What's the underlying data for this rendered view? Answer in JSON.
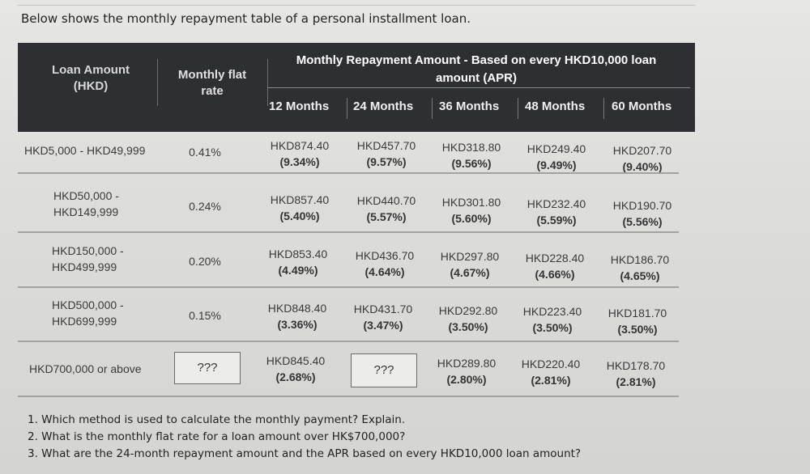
{
  "intro": "Below shows the monthly repayment table of a personal installment loan.",
  "header": {
    "loan_amount": "Loan Amount",
    "loan_amount_unit": "(HKD)",
    "rate_line1": "Monthly flat",
    "rate_line2": "rate",
    "repayment_line1": "Monthly Repayment Amount - Based on every HKD10,000 loan",
    "repayment_line2": "amount (APR)",
    "months": [
      "12 Months",
      "24 Months",
      "36 Months",
      "48 Months",
      "60 Months"
    ]
  },
  "rows": [
    {
      "loan_line1": "HKD5,000 - HKD49,999",
      "loan_line2": "",
      "rate": "0.41%",
      "cells": [
        {
          "amount": "HKD874.40",
          "apr": "(9.34%)"
        },
        {
          "amount": "HKD457.70",
          "apr": "(9.57%)"
        },
        {
          "amount": "HKD318.80",
          "apr": "(9.56%)"
        },
        {
          "amount": "HKD249.40",
          "apr": "(9.49%)"
        },
        {
          "amount": "HKD207.70",
          "apr": "(9.40%)"
        }
      ]
    },
    {
      "loan_line1": "HKD50,000 -",
      "loan_line2": "HKD149,999",
      "rate": "0.24%",
      "cells": [
        {
          "amount": "HKD857.40",
          "apr": "(5.40%)"
        },
        {
          "amount": "HKD440.70",
          "apr": "(5.57%)"
        },
        {
          "amount": "HKD301.80",
          "apr": "(5.60%)"
        },
        {
          "amount": "HKD232.40",
          "apr": "(5.59%)"
        },
        {
          "amount": "HKD190.70",
          "apr": "(5.56%)"
        }
      ]
    },
    {
      "loan_line1": "HKD150,000 -",
      "loan_line2": "HKD499,999",
      "rate": "0.20%",
      "cells": [
        {
          "amount": "HKD853.40",
          "apr": "(4.49%)"
        },
        {
          "amount": "HKD436.70",
          "apr": "(4.64%)"
        },
        {
          "amount": "HKD297.80",
          "apr": "(4.67%)"
        },
        {
          "amount": "HKD228.40",
          "apr": "(4.66%)"
        },
        {
          "amount": "HKD186.70",
          "apr": "(4.65%)"
        }
      ]
    },
    {
      "loan_line1": "HKD500,000 -",
      "loan_line2": "HKD699,999",
      "rate": "0.15%",
      "cells": [
        {
          "amount": "HKD848.40",
          "apr": "(3.36%)"
        },
        {
          "amount": "HKD431.70",
          "apr": "(3.47%)"
        },
        {
          "amount": "HKD292.80",
          "apr": "(3.50%)"
        },
        {
          "amount": "HKD223.40",
          "apr": "(3.50%)"
        },
        {
          "amount": "HKD181.70",
          "apr": "(3.50%)"
        }
      ]
    },
    {
      "loan_line1": "HKD700,000 or above",
      "loan_line2": "",
      "rate": "???",
      "cells": [
        {
          "amount": "HKD845.40",
          "apr": "(2.68%)"
        },
        {
          "amount": "???",
          "apr": ""
        },
        {
          "amount": "HKD289.80",
          "apr": "(2.80%)"
        },
        {
          "amount": "HKD220.40",
          "apr": "(2.81%)"
        },
        {
          "amount": "HKD178.70",
          "apr": "(2.81%)"
        }
      ]
    }
  ],
  "questions": [
    "1. Which method is used to calculate the monthly payment? Explain.",
    "2. What is the monthly flat rate for a loan amount over HK$700,000?",
    "3. What are the 24-month repayment amount and the APR based on every HKD10,000 loan amount?"
  ]
}
